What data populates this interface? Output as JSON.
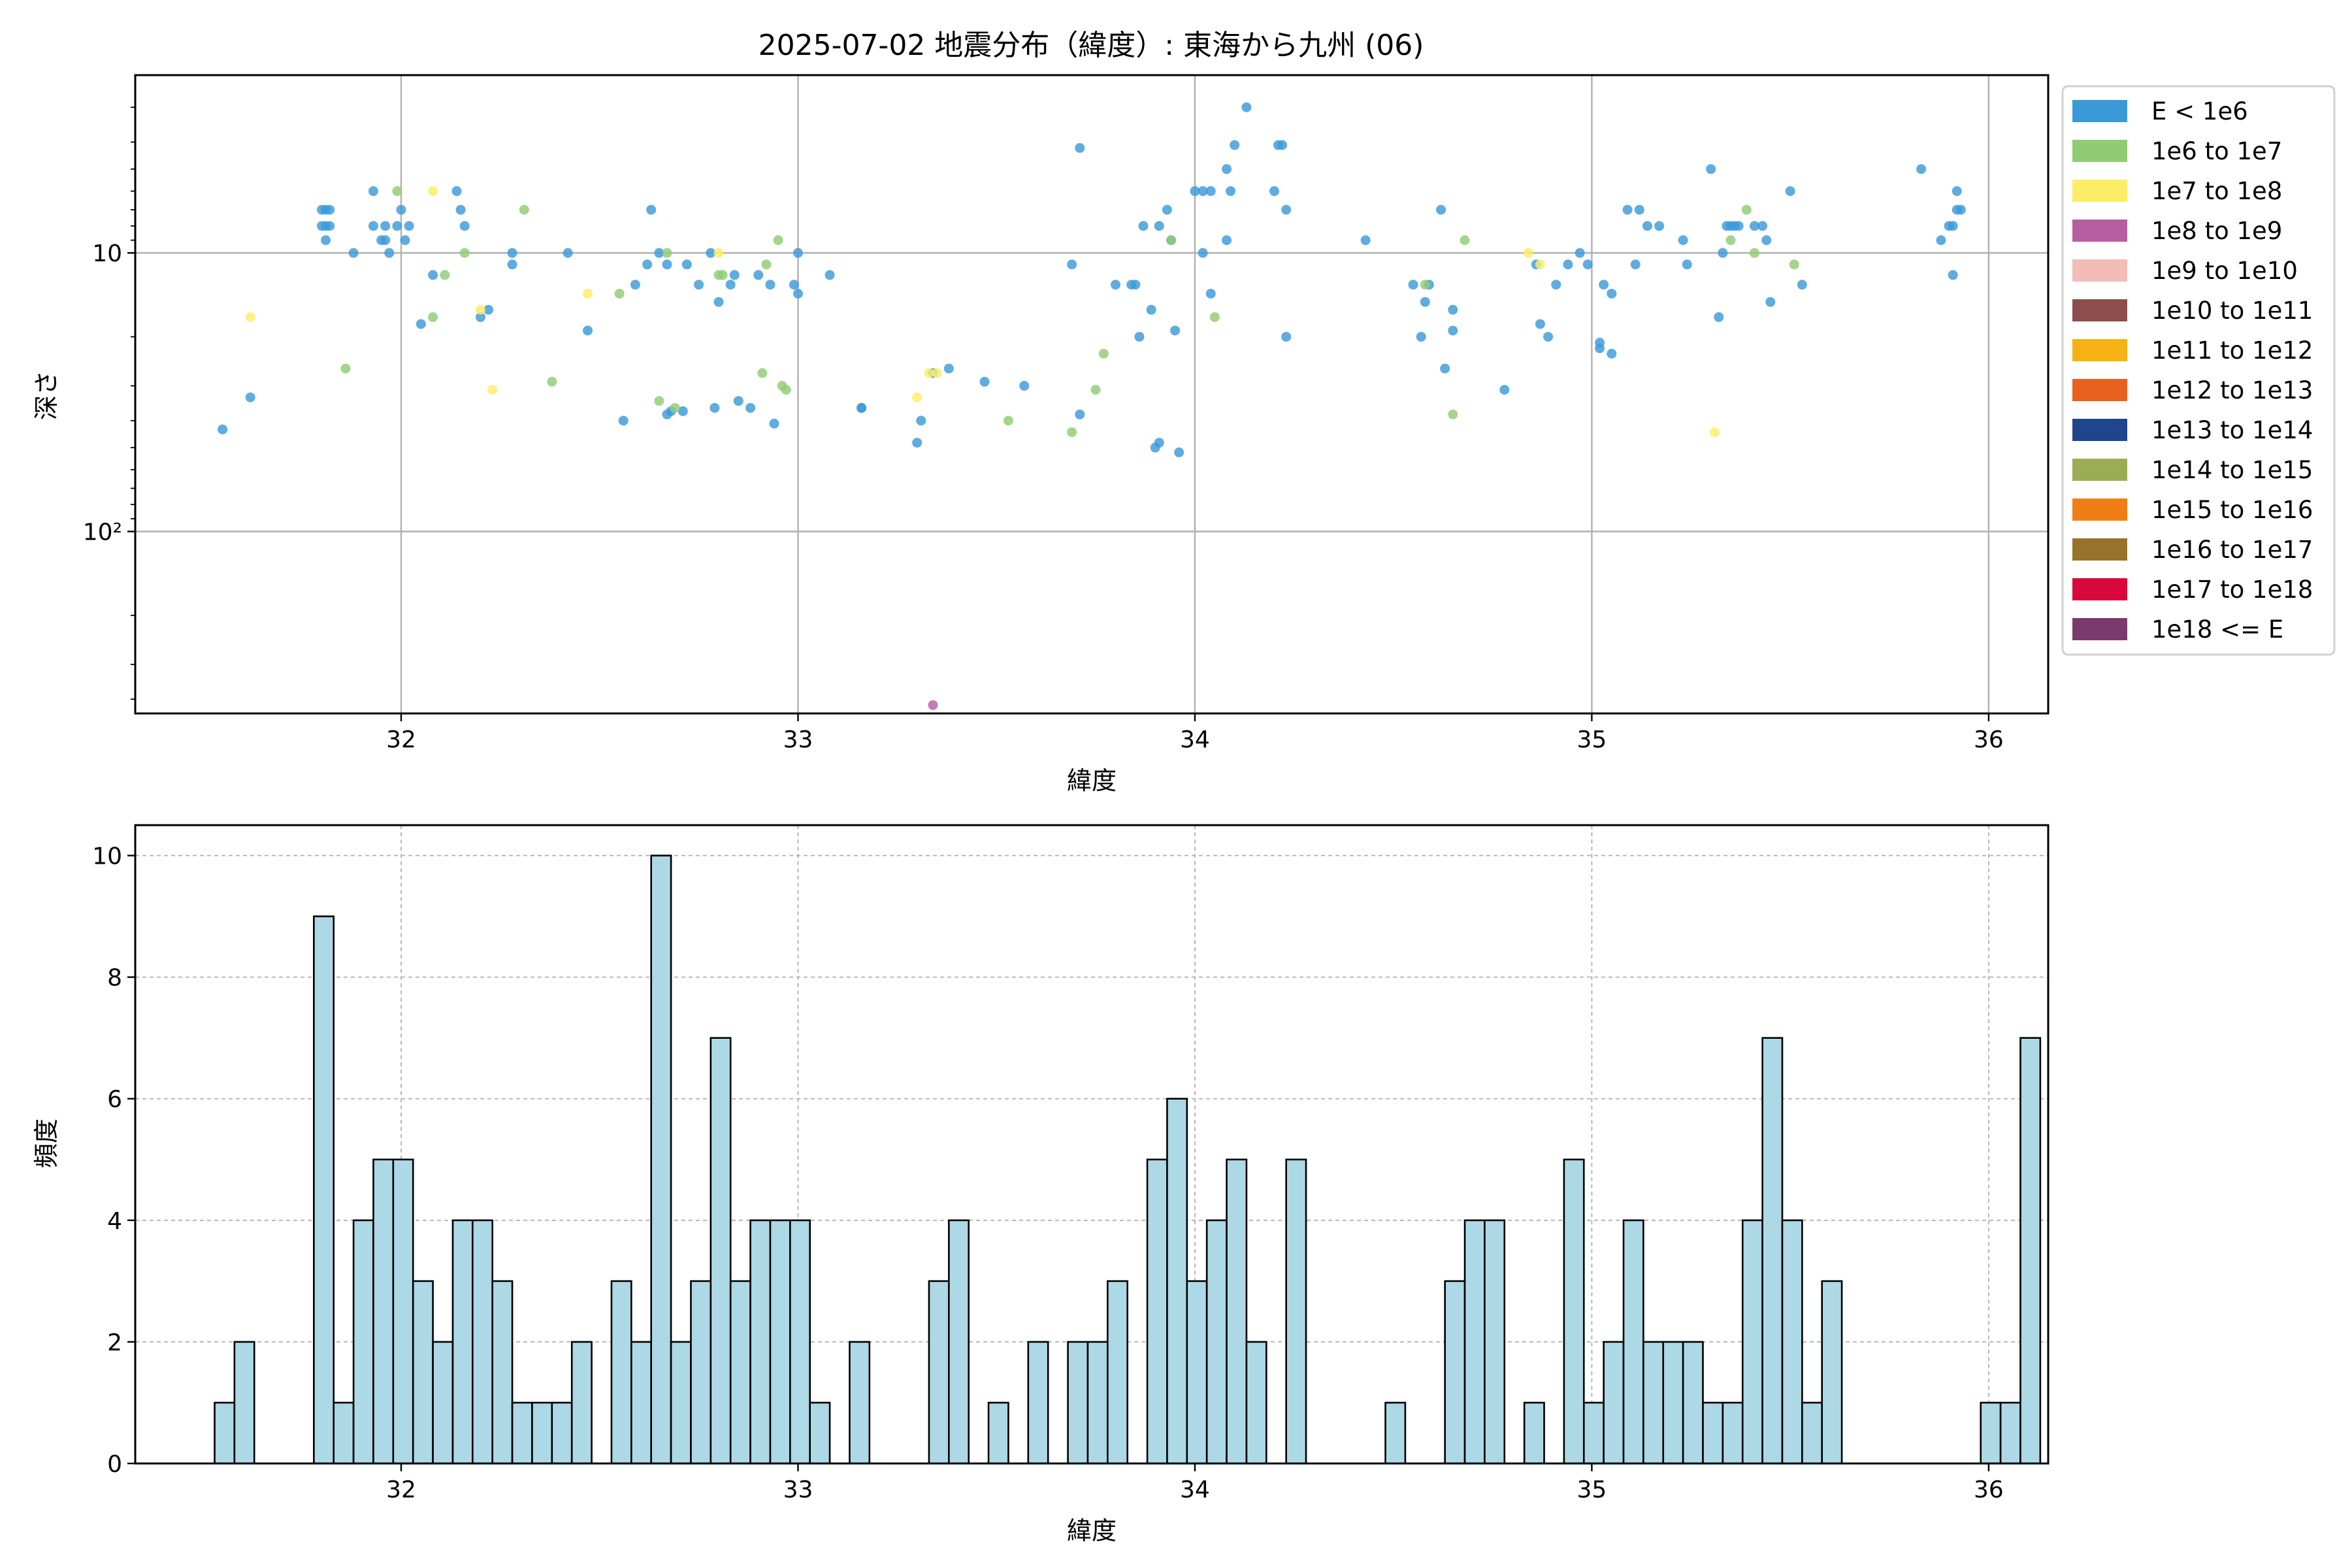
{
  "chart_data": [
    {
      "type": "scatter",
      "title": "2025-07-02 地震分布（緯度）: 東海から九州 (06)",
      "xlabel": "緯度",
      "ylabel": "深さ",
      "xlim": [
        31.33,
        36.15
      ],
      "ylim_log_depth": [
        450,
        2.3
      ],
      "yscale": "log",
      "y_inverted": true,
      "x_ticks": [
        "32",
        "33",
        "34",
        "35",
        "36"
      ],
      "y_ticks": [
        "10",
        "10²"
      ],
      "grid": true,
      "legend_position": "outside-right",
      "legend": [
        {
          "label": "E < 1e6",
          "color": "#3a9ad9"
        },
        {
          "label": "1e6 to 1e7",
          "color": "#90cc74"
        },
        {
          "label": "1e7 to 1e8",
          "color": "#fbee66"
        },
        {
          "label": "1e8 to 1e9",
          "color": "#b85ea0"
        },
        {
          "label": "1e9 to 1e10",
          "color": "#f4bcb6"
        },
        {
          "label": "1e10 to 1e11",
          "color": "#8c4e4b"
        },
        {
          "label": "1e11 to 1e12",
          "color": "#f6b213"
        },
        {
          "label": "1e12 to 1e13",
          "color": "#e8601d"
        },
        {
          "label": "1e13 to 1e14",
          "color": "#1e458e"
        },
        {
          "label": "1e14 to 1e15",
          "color": "#9aad55"
        },
        {
          "label": "1e15 to 1e16",
          "color": "#f07e15"
        },
        {
          "label": "1e16 to 1e17",
          "color": "#97722b"
        },
        {
          "label": "1e17 to 1e18",
          "color": "#d9083c"
        },
        {
          "label": "1e18 <= E",
          "color": "#7b3a6e"
        }
      ],
      "series": [
        {
          "class": 0,
          "points": [
            [
              31.55,
              43
            ],
            [
              31.62,
              33
            ],
            [
              31.8,
              7
            ],
            [
              31.8,
              8
            ],
            [
              31.81,
              7
            ],
            [
              31.81,
              8
            ],
            [
              31.81,
              9
            ],
            [
              31.82,
              7
            ],
            [
              31.82,
              8
            ],
            [
              31.88,
              10
            ],
            [
              31.93,
              6
            ],
            [
              31.93,
              8
            ],
            [
              31.95,
              9
            ],
            [
              31.96,
              9
            ],
            [
              31.96,
              8
            ],
            [
              31.97,
              10
            ],
            [
              31.99,
              8
            ],
            [
              32.0,
              7
            ],
            [
              32.01,
              9
            ],
            [
              32.02,
              8
            ],
            [
              32.05,
              18
            ],
            [
              32.08,
              12
            ],
            [
              32.14,
              6
            ],
            [
              32.15,
              7
            ],
            [
              32.16,
              8
            ],
            [
              32.2,
              17
            ],
            [
              32.22,
              16
            ],
            [
              32.28,
              10
            ],
            [
              32.28,
              11
            ],
            [
              32.42,
              10
            ],
            [
              32.47,
              19
            ],
            [
              32.56,
              40
            ],
            [
              32.59,
              13
            ],
            [
              32.62,
              11
            ],
            [
              32.63,
              7
            ],
            [
              32.65,
              10
            ],
            [
              32.67,
              38
            ],
            [
              32.67,
              11
            ],
            [
              32.68,
              37
            ],
            [
              32.71,
              37
            ],
            [
              32.72,
              11
            ],
            [
              32.75,
              13
            ],
            [
              32.78,
              10
            ],
            [
              32.79,
              36
            ],
            [
              32.8,
              15
            ],
            [
              32.83,
              13
            ],
            [
              32.84,
              12
            ],
            [
              32.85,
              34
            ],
            [
              32.88,
              36
            ],
            [
              32.9,
              12
            ],
            [
              32.93,
              13
            ],
            [
              32.94,
              41
            ],
            [
              32.99,
              13
            ],
            [
              33.0,
              14
            ],
            [
              33.0,
              10
            ],
            [
              33.08,
              12
            ],
            [
              33.16,
              36
            ],
            [
              33.16,
              36
            ],
            [
              33.3,
              48
            ],
            [
              33.31,
              40
            ],
            [
              33.34,
              27
            ],
            [
              33.38,
              26
            ],
            [
              33.47,
              29
            ],
            [
              33.57,
              30
            ],
            [
              33.69,
              11
            ],
            [
              33.71,
              38
            ],
            [
              33.71,
              4.2
            ],
            [
              33.8,
              13
            ],
            [
              33.84,
              13
            ],
            [
              33.85,
              13
            ],
            [
              33.86,
              20
            ],
            [
              33.87,
              8
            ],
            [
              33.89,
              16
            ],
            [
              33.9,
              50
            ],
            [
              33.91,
              48
            ],
            [
              33.91,
              8
            ],
            [
              33.93,
              7
            ],
            [
              33.94,
              9
            ],
            [
              33.95,
              19
            ],
            [
              33.96,
              52
            ],
            [
              34.0,
              6
            ],
            [
              34.02,
              6
            ],
            [
              34.02,
              10
            ],
            [
              34.04,
              6
            ],
            [
              34.04,
              14
            ],
            [
              34.08,
              9
            ],
            [
              34.08,
              5
            ],
            [
              34.09,
              6
            ],
            [
              34.1,
              4.1
            ],
            [
              34.13,
              3.0
            ],
            [
              34.2,
              6
            ],
            [
              34.21,
              4.1
            ],
            [
              34.22,
              4.1
            ],
            [
              34.23,
              7
            ],
            [
              34.23,
              20
            ],
            [
              34.43,
              9
            ],
            [
              34.55,
              13
            ],
            [
              34.57,
              20
            ],
            [
              34.58,
              15
            ],
            [
              34.59,
              13
            ],
            [
              34.62,
              7
            ],
            [
              34.63,
              26
            ],
            [
              34.65,
              16
            ],
            [
              34.65,
              19
            ],
            [
              34.78,
              31
            ],
            [
              34.86,
              11
            ],
            [
              34.87,
              18
            ],
            [
              34.89,
              20
            ],
            [
              34.91,
              13
            ],
            [
              34.94,
              11
            ],
            [
              34.97,
              10
            ],
            [
              34.99,
              11
            ],
            [
              35.02,
              21
            ],
            [
              35.03,
              13
            ],
            [
              35.02,
              22
            ],
            [
              35.05,
              14
            ],
            [
              35.05,
              23
            ],
            [
              35.09,
              7
            ],
            [
              35.11,
              11
            ],
            [
              35.12,
              7
            ],
            [
              35.14,
              8
            ],
            [
              35.17,
              8
            ],
            [
              35.23,
              9
            ],
            [
              35.24,
              11
            ],
            [
              35.3,
              5
            ],
            [
              35.32,
              17
            ],
            [
              35.33,
              10
            ],
            [
              35.34,
              8
            ],
            [
              35.35,
              8
            ],
            [
              35.36,
              8
            ],
            [
              35.37,
              8
            ],
            [
              35.41,
              8
            ],
            [
              35.43,
              8
            ],
            [
              35.44,
              9
            ],
            [
              35.45,
              15
            ],
            [
              35.5,
              6
            ],
            [
              35.53,
              13
            ],
            [
              35.83,
              5
            ],
            [
              35.88,
              9
            ],
            [
              35.9,
              8
            ],
            [
              35.91,
              8
            ],
            [
              35.91,
              12
            ],
            [
              35.92,
              7
            ],
            [
              35.92,
              6
            ],
            [
              35.93,
              7
            ]
          ]
        },
        {
          "class": 1,
          "points": [
            [
              31.86,
              26
            ],
            [
              31.99,
              6
            ],
            [
              32.08,
              17
            ],
            [
              32.11,
              12
            ],
            [
              32.16,
              10
            ],
            [
              32.31,
              7
            ],
            [
              32.38,
              29
            ],
            [
              32.55,
              14
            ],
            [
              32.65,
              34
            ],
            [
              32.67,
              10
            ],
            [
              32.69,
              36
            ],
            [
              32.8,
              12
            ],
            [
              32.81,
              12
            ],
            [
              32.91,
              27
            ],
            [
              32.92,
              11
            ],
            [
              32.95,
              9
            ],
            [
              32.96,
              30
            ],
            [
              32.97,
              31
            ],
            [
              33.53,
              40
            ],
            [
              33.69,
              44
            ],
            [
              33.75,
              31
            ],
            [
              33.77,
              23
            ],
            [
              33.94,
              9
            ],
            [
              34.05,
              17
            ],
            [
              34.58,
              13
            ],
            [
              34.65,
              38
            ],
            [
              34.68,
              9
            ],
            [
              35.35,
              9
            ],
            [
              35.39,
              7
            ],
            [
              35.41,
              10
            ],
            [
              35.51,
              11
            ]
          ]
        },
        {
          "class": 2,
          "points": [
            [
              31.62,
              17
            ],
            [
              32.08,
              6
            ],
            [
              32.2,
              16
            ],
            [
              32.23,
              31
            ],
            [
              32.47,
              14
            ],
            [
              32.8,
              10
            ],
            [
              33.3,
              33
            ],
            [
              33.33,
              27
            ],
            [
              33.35,
              27
            ],
            [
              34.84,
              10
            ],
            [
              34.87,
              11
            ],
            [
              35.31,
              44
            ]
          ]
        },
        {
          "class": 3,
          "points": [
            [
              33.34,
              420
            ]
          ]
        }
      ]
    },
    {
      "type": "bar",
      "xlabel": "緯度",
      "ylabel": "頻度",
      "xlim": [
        31.33,
        36.15
      ],
      "ylim": [
        0,
        10.5
      ],
      "x_ticks": [
        "32",
        "33",
        "34",
        "35",
        "36"
      ],
      "y_ticks": [
        "0",
        "2",
        "4",
        "6",
        "8",
        "10"
      ],
      "grid": true,
      "bar_color": "#add8e6",
      "bin_start": 31.53,
      "bin_width": 0.05,
      "values": [
        1,
        2,
        0,
        0,
        0,
        9,
        1,
        4,
        5,
        5,
        3,
        2,
        4,
        4,
        3,
        1,
        1,
        1,
        2,
        0,
        3,
        2,
        10,
        2,
        3,
        7,
        3,
        4,
        4,
        4,
        1,
        0,
        2,
        0,
        0,
        0,
        3,
        4,
        0,
        1,
        0,
        2,
        0,
        2,
        2,
        3,
        0,
        5,
        6,
        3,
        4,
        5,
        2,
        0,
        5,
        0,
        0,
        0,
        0,
        1,
        0,
        0,
        3,
        4,
        4,
        0,
        1,
        0,
        5,
        1,
        2,
        4,
        2,
        2,
        2,
        1,
        1,
        4,
        7,
        4,
        1,
        3,
        0,
        0,
        0,
        0,
        0,
        0,
        0,
        1,
        1,
        7
      ]
    }
  ]
}
